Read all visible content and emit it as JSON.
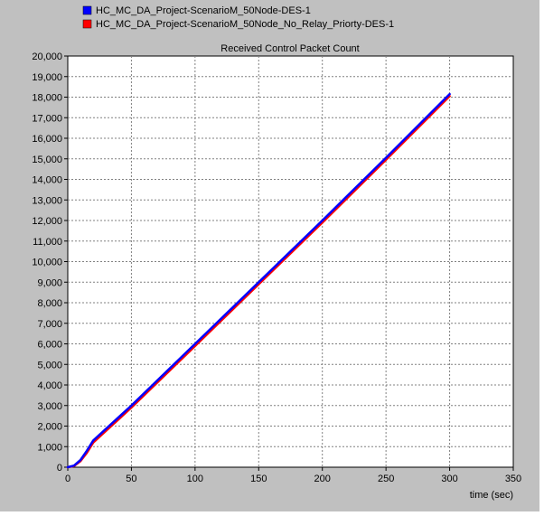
{
  "chart_data": {
    "type": "line",
    "title": "Received Control Packet Count",
    "xlabel": "time (sec)",
    "ylabel": "",
    "xlim": [
      0,
      350
    ],
    "ylim": [
      0,
      20000
    ],
    "x_ticks": [
      0,
      50,
      100,
      150,
      200,
      250,
      300,
      350
    ],
    "x_tick_labels": [
      "0",
      "50",
      "100",
      "150",
      "200",
      "250",
      "300",
      "350"
    ],
    "y_ticks": [
      0,
      1000,
      2000,
      3000,
      4000,
      5000,
      6000,
      7000,
      8000,
      9000,
      10000,
      11000,
      12000,
      13000,
      14000,
      15000,
      16000,
      17000,
      18000,
      19000,
      20000
    ],
    "y_tick_labels": [
      "0",
      "1,000",
      "2,000",
      "3,000",
      "4,000",
      "5,000",
      "6,000",
      "7,000",
      "8,000",
      "9,000",
      "10,000",
      "11,000",
      "12,000",
      "13,000",
      "14,000",
      "15,000",
      "16,000",
      "17,000",
      "18,000",
      "19,000",
      "20,000"
    ],
    "grid": true,
    "legend_position": "top-left",
    "series": [
      {
        "name": "HC_MC_DA_Project-ScenarioM_50Node-DES-1",
        "color": "#0000ff",
        "x": [
          0,
          5,
          10,
          15,
          20,
          50,
          100,
          150,
          200,
          250,
          300
        ],
        "y": [
          0,
          80,
          350,
          800,
          1300,
          3000,
          6000,
          9000,
          12000,
          15050,
          18150
        ]
      },
      {
        "name": "HC_MC_DA_Project-ScenarioM_50Node_No_Relay_Priorty-DES-1",
        "color": "#ff0000",
        "x": [
          0,
          5,
          10,
          15,
          20,
          50,
          100,
          150,
          200,
          250,
          300
        ],
        "y": [
          0,
          60,
          300,
          700,
          1200,
          2900,
          5900,
          8900,
          11900,
          14950,
          18050
        ]
      }
    ]
  }
}
